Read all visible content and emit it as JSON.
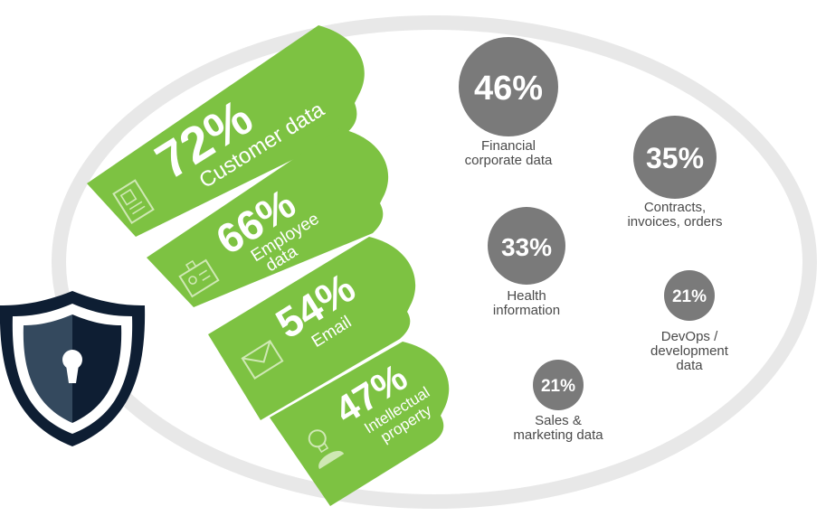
{
  "colors": {
    "green": "#7dc242",
    "green_dark": "#5e9e2a",
    "bubble_gray": "#7a7a7a",
    "ellipse_gray": "#e8e8e8",
    "shield_navy": "#0e1e33",
    "shield_slate": "#34495e"
  },
  "ribbons": [
    {
      "percent": "72%",
      "line1": "Customer data",
      "line2": "",
      "icon": "document-id-icon"
    },
    {
      "percent": "66%",
      "line1": "Employee",
      "line2": "data",
      "icon": "id-badge-icon"
    },
    {
      "percent": "54%",
      "line1": "Email",
      "line2": "",
      "icon": "envelope-icon"
    },
    {
      "percent": "47%",
      "line1": "Intellectual",
      "line2": "property",
      "icon": "lightbulb-head-icon"
    }
  ],
  "bubbles": [
    {
      "percent": "46%",
      "label_lines": [
        "Financial",
        "corporate data"
      ]
    },
    {
      "percent": "35%",
      "label_lines": [
        "Contracts,",
        "invoices, orders"
      ]
    },
    {
      "percent": "33%",
      "label_lines": [
        "Health",
        "information"
      ]
    },
    {
      "percent": "21%",
      "label_lines": [
        "DevOps /",
        "development",
        "data"
      ]
    },
    {
      "percent": "21%",
      "label_lines": [
        "Sales &",
        "marketing data"
      ]
    }
  ],
  "shield_icon": "keyhole-shield-icon"
}
